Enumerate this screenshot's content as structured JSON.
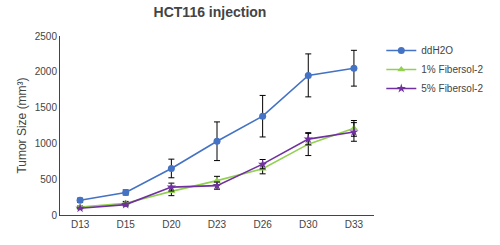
{
  "chart_data": {
    "type": "line",
    "title": "HCT116 injection",
    "ylabel": "Tumor Size (mm³)",
    "categories": [
      "D13",
      "D15",
      "D20",
      "D23",
      "D26",
      "D30",
      "D33"
    ],
    "ylim": [
      0,
      2500
    ],
    "yticks": [
      0,
      500,
      1000,
      1500,
      2000,
      2500
    ],
    "grid": false,
    "legend": "right",
    "series": [
      {
        "name": "ddH2O",
        "color": "#4472C4",
        "marker": "circle",
        "values": [
          205,
          315,
          650,
          1030,
          1380,
          1950,
          2050
        ],
        "errors": [
          30,
          35,
          130,
          270,
          290,
          300,
          250
        ]
      },
      {
        "name": "1% Fibersol-2",
        "color": "#92D050",
        "marker": "triangle-up",
        "values": [
          110,
          165,
          330,
          480,
          645,
          990,
          1210
        ],
        "errors": [
          15,
          25,
          60,
          60,
          70,
          160,
          110
        ]
      },
      {
        "name": "5% Fibersol-2",
        "color": "#7030A0",
        "marker": "star",
        "values": [
          95,
          145,
          390,
          410,
          710,
          1060,
          1160
        ],
        "errors": [
          10,
          20,
          55,
          50,
          65,
          80,
          130
        ]
      }
    ]
  }
}
